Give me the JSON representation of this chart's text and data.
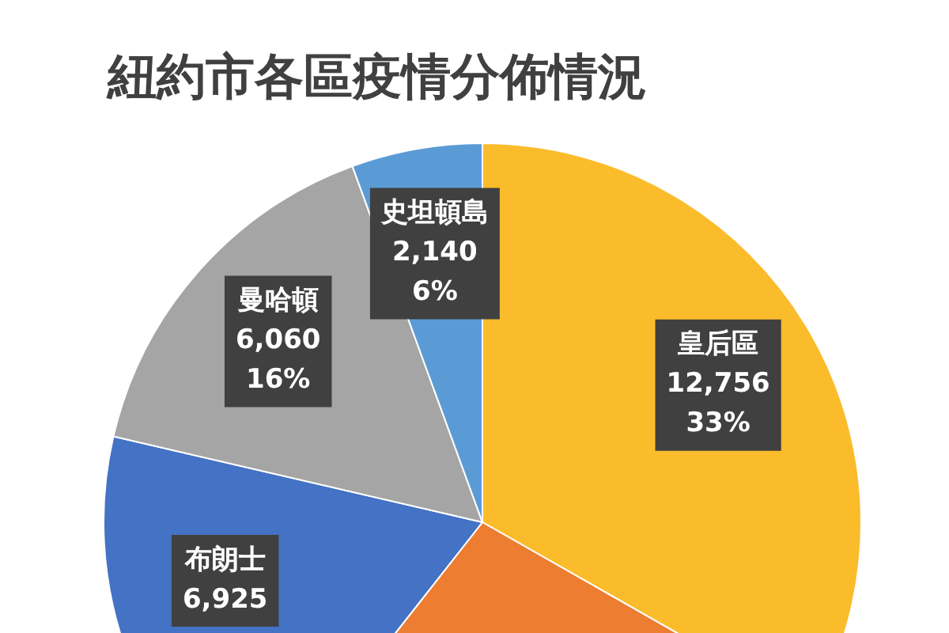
{
  "chart_data": {
    "type": "pie",
    "title": "紐約市各區疫情分佈情況",
    "categories": [
      "皇后區",
      null,
      "布朗士",
      "曼哈頓",
      "史坦頓島"
    ],
    "values": [
      12756,
      10500,
      6925,
      6060,
      2140
    ],
    "colors": [
      "#fbbc2c",
      "#ed7d31",
      "#4472c4",
      "#a5a5a5",
      "#5b9bd5"
    ],
    "value_labels": [
      "12,756\n33%",
      null,
      "6,925",
      "6,060\n16%",
      "2,140\n6%"
    ],
    "legend": false
  }
}
